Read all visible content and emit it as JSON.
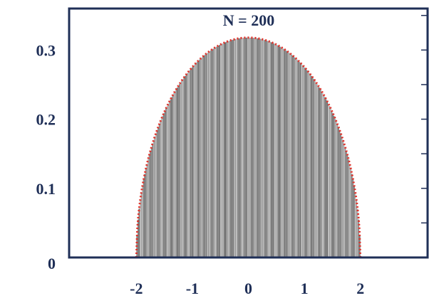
{
  "chart_data": {
    "type": "histogram",
    "title": "N = 200",
    "xlabel": "",
    "ylabel": "",
    "xlim": [
      -3.2,
      3.2
    ],
    "ylim": [
      0,
      0.36
    ],
    "x_ticks": [
      -2,
      -1,
      0,
      1,
      2
    ],
    "x_tick_labels": [
      "-2",
      "-1",
      "0",
      "1",
      "2"
    ],
    "y_ticks": [
      0,
      0.1,
      0.2,
      0.3
    ],
    "y_tick_labels": [
      "0",
      "0.1",
      "0.2",
      "0.3"
    ],
    "grid": false,
    "colors": {
      "axes": "#1f2f57",
      "bars": "#8f8f8f",
      "curve": "#e0322a"
    },
    "series": [
      {
        "kind": "histogram-bars",
        "x_range": [
          -2,
          2
        ],
        "bin_count": 200,
        "shape": "semicircle",
        "peak": 0.318
      },
      {
        "kind": "curve",
        "style": "dotted",
        "function": "semicircle",
        "radius": 2,
        "peak": 0.318
      }
    ]
  }
}
